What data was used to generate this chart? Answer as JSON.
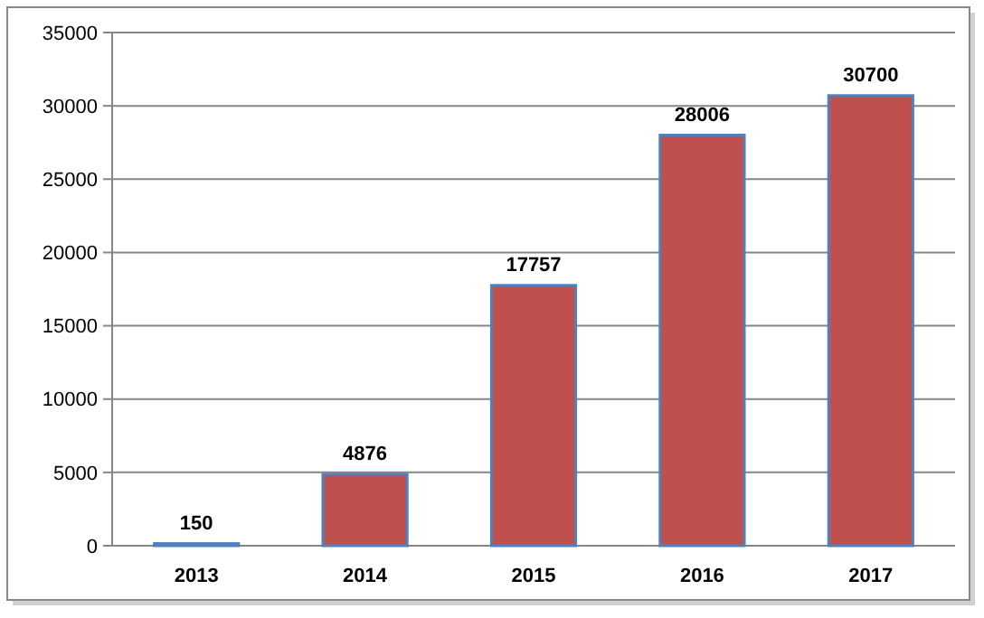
{
  "chart_data": {
    "type": "bar",
    "categories": [
      "2013",
      "2014",
      "2015",
      "2016",
      "2017"
    ],
    "values": [
      150,
      4876,
      17757,
      28006,
      30700
    ],
    "color": "#c0504d",
    "ylim": [
      0,
      35000
    ],
    "yticks": [
      0,
      5000,
      10000,
      15000,
      20000,
      25000,
      30000,
      35000
    ],
    "grid": "y",
    "data_labels": true
  }
}
